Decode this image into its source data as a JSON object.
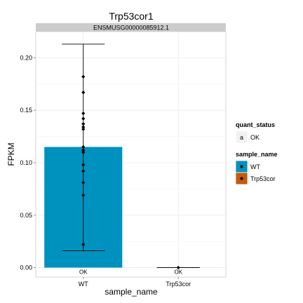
{
  "chart_data": {
    "type": "bar",
    "title": "Trp53cor1",
    "facet_label": "ENSMUSG00000085912.1",
    "xlabel": "sample_name",
    "ylabel": "FPKM",
    "categories": [
      "WT",
      "Trp53cor"
    ],
    "values": [
      0.115,
      0.0
    ],
    "error_bars": [
      {
        "low": 0.016,
        "high": 0.213
      },
      {
        "low": 0.0,
        "high": 0.0
      }
    ],
    "bar_status_labels": [
      "OK",
      "OK"
    ],
    "replicate_points": [
      {
        "x": "WT",
        "y": [
          0.182,
          0.167,
          0.147,
          0.142,
          0.137,
          0.134,
          0.132,
          0.115,
          0.112,
          0.11,
          0.098,
          0.092,
          0.081,
          0.069,
          0.022
        ]
      },
      {
        "x": "Trp53cor",
        "y": [
          0.0
        ]
      }
    ],
    "ylim": [
      -0.009,
      0.225
    ],
    "y_ticks": [
      0.0,
      0.05,
      0.1,
      0.15,
      0.2
    ],
    "y_tick_labels": [
      "0.00",
      "0.05",
      "0.10",
      "0.15",
      "0.20"
    ],
    "grid": true,
    "legend_position": "right",
    "legends": [
      {
        "title": "quant_status",
        "items": [
          {
            "key_text": "a",
            "label": "OK"
          }
        ]
      },
      {
        "title": "sample_name",
        "items": [
          {
            "label": "WT",
            "color": "#0092BF"
          },
          {
            "label": "Trp53cor",
            "color": "#C45A0A"
          }
        ]
      }
    ],
    "colors": {
      "WT": "#0092BF",
      "Trp53cor": "#C45A0A",
      "panel_background": "#FFFFFF",
      "strip_background": "#CCCCCC",
      "grid": "#EBEBEB"
    }
  }
}
